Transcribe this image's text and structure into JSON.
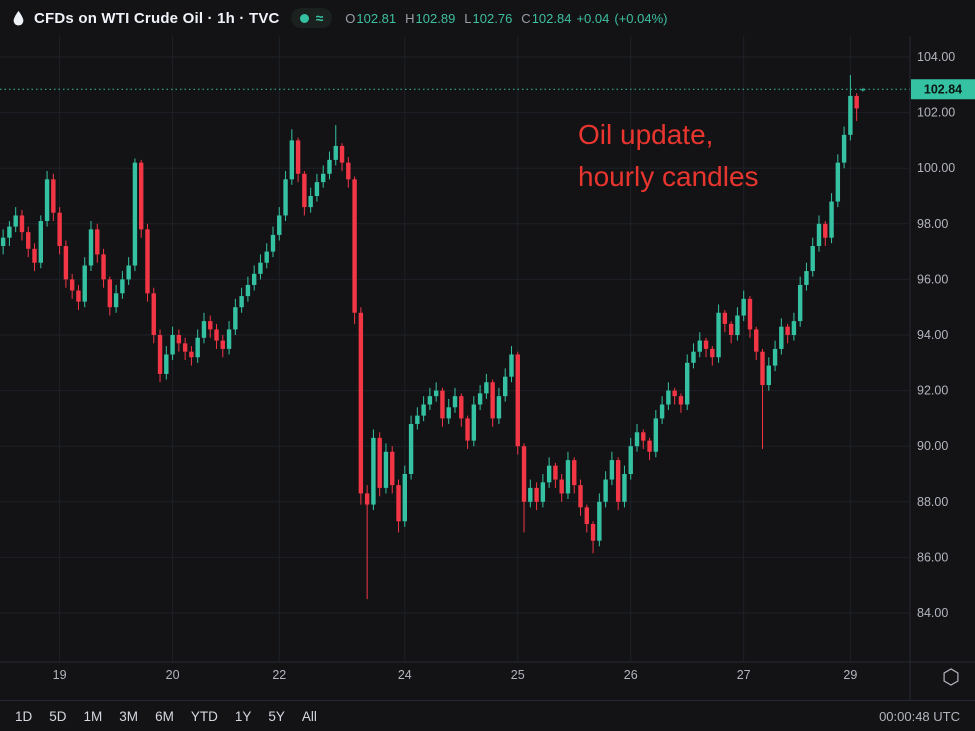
{
  "header": {
    "symbol_title": "CFDs on WTI Crude Oil · 1h · TVC",
    "approx_glyph": "≈",
    "ohlc": {
      "o_label": "O",
      "o": "102.81",
      "h_label": "H",
      "h": "102.89",
      "l_label": "L",
      "l": "102.76",
      "c_label": "C",
      "c": "102.84",
      "change": "+0.04",
      "change_pct": "(+0.04%)"
    }
  },
  "toolbar": {
    "ranges": [
      "1D",
      "5D",
      "1M",
      "3M",
      "6M",
      "YTD",
      "1Y",
      "5Y",
      "All"
    ],
    "clock": "00:00:48 UTC"
  },
  "colors": {
    "bg": "#131316",
    "header_text": "#f0f3fa",
    "muted": "#9a9ea8",
    "value_text": "#3dbfa1",
    "axis_text": "#b2b5be",
    "toolbar_text": "#d5d8e0",
    "grid": "#1d2127",
    "border": "#242832",
    "up": "#35c2a2",
    "down": "#f23645",
    "tag_text": "#0a1512",
    "pill_bg": "#1a211f"
  },
  "chart_data": {
    "type": "candlestick",
    "symbol": "CFDs on WTI Crude Oil",
    "interval": "1h",
    "source": "TVC",
    "current_bar": {
      "open": 102.81,
      "high": 102.89,
      "low": 102.76,
      "close": 102.84,
      "change": 0.04,
      "change_pct": 0.04
    },
    "last_price": 102.84,
    "last_price_label": "102.84",
    "grid": true,
    "legend_position": "top-left",
    "annotation": {
      "lines": [
        "Oil update,",
        "hourly candles"
      ],
      "color": "#e8352e"
    },
    "y_axis": {
      "min": 82.3,
      "max": 104.8,
      "tick_values": [
        104,
        102,
        100,
        98,
        96,
        94,
        92,
        90,
        88,
        86,
        84
      ],
      "tick_labels": [
        "104.00",
        "102.00",
        "100.00",
        "98.00",
        "96.00",
        "94.00",
        "92.00",
        "90.00",
        "88.00",
        "86.00",
        "84.00"
      ]
    },
    "x_slots": 145,
    "x_ticks": [
      {
        "label": "19",
        "index": 9
      },
      {
        "label": "20",
        "index": 27
      },
      {
        "label": "22",
        "index": 44
      },
      {
        "label": "24",
        "index": 64
      },
      {
        "label": "25",
        "index": 82
      },
      {
        "label": "26",
        "index": 100
      },
      {
        "label": "27",
        "index": 118
      },
      {
        "label": "29",
        "index": 135
      }
    ],
    "candles": [
      [
        97.2,
        97.8,
        96.9,
        97.5
      ],
      [
        97.5,
        98.1,
        97.2,
        97.9
      ],
      [
        97.9,
        98.6,
        97.7,
        98.3
      ],
      [
        98.3,
        98.5,
        97.4,
        97.7
      ],
      [
        97.7,
        97.9,
        96.8,
        97.1
      ],
      [
        97.1,
        97.3,
        96.3,
        96.6
      ],
      [
        96.6,
        98.3,
        96.4,
        98.1
      ],
      [
        98.1,
        99.9,
        97.9,
        99.6
      ],
      [
        99.6,
        99.8,
        98.1,
        98.4
      ],
      [
        98.4,
        98.6,
        96.9,
        97.2
      ],
      [
        97.2,
        97.4,
        95.7,
        96.0
      ],
      [
        96.0,
        96.2,
        95.3,
        95.6
      ],
      [
        95.6,
        95.8,
        94.9,
        95.2
      ],
      [
        95.2,
        96.8,
        95.0,
        96.5
      ],
      [
        96.5,
        98.1,
        96.3,
        97.8
      ],
      [
        97.8,
        98.0,
        96.6,
        96.9
      ],
      [
        96.9,
        97.1,
        95.7,
        96.0
      ],
      [
        96.0,
        96.1,
        94.7,
        95.0
      ],
      [
        95.0,
        95.8,
        94.8,
        95.5
      ],
      [
        95.5,
        96.3,
        95.3,
        96.0
      ],
      [
        96.0,
        96.8,
        95.8,
        96.5
      ],
      [
        96.5,
        100.35,
        96.3,
        100.2
      ],
      [
        100.2,
        100.3,
        97.5,
        97.8
      ],
      [
        97.8,
        98.0,
        95.2,
        95.5
      ],
      [
        95.5,
        95.7,
        93.7,
        94.0
      ],
      [
        94.0,
        94.2,
        92.3,
        92.6
      ],
      [
        92.6,
        93.6,
        92.4,
        93.3
      ],
      [
        93.3,
        94.3,
        93.1,
        94.0
      ],
      [
        94.0,
        94.2,
        93.4,
        93.7
      ],
      [
        93.7,
        93.9,
        93.1,
        93.4
      ],
      [
        93.4,
        93.6,
        92.9,
        93.2
      ],
      [
        93.2,
        94.2,
        93.0,
        93.9
      ],
      [
        93.9,
        94.8,
        93.7,
        94.5
      ],
      [
        94.5,
        94.7,
        93.9,
        94.2
      ],
      [
        94.2,
        94.4,
        93.5,
        93.8
      ],
      [
        93.8,
        94.0,
        93.2,
        93.5
      ],
      [
        93.5,
        94.5,
        93.3,
        94.2
      ],
      [
        94.2,
        95.3,
        94.0,
        95.0
      ],
      [
        95.0,
        95.7,
        94.8,
        95.4
      ],
      [
        95.4,
        96.1,
        95.2,
        95.8
      ],
      [
        95.8,
        96.5,
        95.6,
        96.2
      ],
      [
        96.2,
        96.9,
        96.0,
        96.6
      ],
      [
        96.6,
        97.3,
        96.4,
        97.0
      ],
      [
        97.0,
        97.9,
        96.8,
        97.6
      ],
      [
        97.6,
        98.6,
        97.4,
        98.3
      ],
      [
        98.3,
        99.9,
        98.1,
        99.6
      ],
      [
        99.6,
        101.4,
        99.4,
        101.0
      ],
      [
        101.0,
        101.1,
        99.5,
        99.8
      ],
      [
        99.8,
        99.9,
        98.3,
        98.6
      ],
      [
        98.6,
        99.3,
        98.4,
        99.0
      ],
      [
        99.0,
        99.8,
        98.8,
        99.5
      ],
      [
        99.5,
        100.1,
        99.3,
        99.8
      ],
      [
        99.8,
        100.6,
        99.6,
        100.3
      ],
      [
        100.3,
        101.55,
        100.1,
        100.8
      ],
      [
        100.8,
        100.9,
        99.9,
        100.2
      ],
      [
        100.2,
        100.4,
        99.3,
        99.6
      ],
      [
        99.6,
        99.7,
        94.4,
        94.8
      ],
      [
        94.8,
        95.0,
        87.9,
        88.3
      ],
      [
        88.3,
        88.6,
        84.5,
        87.9
      ],
      [
        87.9,
        90.6,
        87.7,
        90.3
      ],
      [
        90.3,
        90.5,
        88.2,
        88.5
      ],
      [
        88.5,
        90.1,
        88.3,
        89.8
      ],
      [
        89.8,
        90.0,
        88.3,
        88.6
      ],
      [
        88.6,
        88.8,
        86.9,
        87.3
      ],
      [
        87.3,
        89.3,
        87.1,
        89.0
      ],
      [
        89.0,
        91.1,
        88.8,
        90.8
      ],
      [
        90.8,
        91.4,
        90.6,
        91.1
      ],
      [
        91.1,
        91.8,
        90.9,
        91.5
      ],
      [
        91.5,
        92.1,
        91.3,
        91.8
      ],
      [
        91.8,
        92.3,
        91.6,
        92.0
      ],
      [
        92.0,
        92.1,
        90.7,
        91.0
      ],
      [
        91.0,
        91.7,
        90.8,
        91.4
      ],
      [
        91.4,
        92.1,
        91.2,
        91.8
      ],
      [
        91.8,
        91.9,
        90.7,
        91.0
      ],
      [
        91.0,
        91.1,
        89.9,
        90.2
      ],
      [
        90.2,
        91.8,
        90.0,
        91.5
      ],
      [
        91.5,
        92.2,
        91.3,
        91.9
      ],
      [
        91.9,
        92.6,
        91.7,
        92.3
      ],
      [
        92.3,
        92.4,
        90.7,
        91.0
      ],
      [
        91.0,
        92.1,
        90.8,
        91.8
      ],
      [
        91.8,
        92.8,
        91.6,
        92.5
      ],
      [
        92.5,
        93.6,
        92.3,
        93.3
      ],
      [
        93.3,
        93.4,
        89.7,
        90.0
      ],
      [
        90.0,
        90.1,
        86.9,
        88.0
      ],
      [
        88.0,
        88.8,
        87.8,
        88.5
      ],
      [
        88.5,
        88.7,
        87.7,
        88.0
      ],
      [
        88.0,
        89.0,
        87.8,
        88.7
      ],
      [
        88.7,
        89.6,
        88.5,
        89.3
      ],
      [
        89.3,
        89.4,
        88.5,
        88.8
      ],
      [
        88.8,
        89.0,
        88.0,
        88.3
      ],
      [
        88.3,
        89.8,
        88.1,
        89.5
      ],
      [
        89.5,
        89.6,
        88.3,
        88.6
      ],
      [
        88.6,
        88.8,
        87.5,
        87.8
      ],
      [
        87.8,
        87.9,
        86.9,
        87.2
      ],
      [
        87.2,
        87.3,
        86.15,
        86.6
      ],
      [
        86.6,
        88.3,
        86.4,
        88.0
      ],
      [
        88.0,
        89.1,
        87.8,
        88.8
      ],
      [
        88.8,
        89.8,
        88.6,
        89.5
      ],
      [
        89.5,
        89.6,
        87.7,
        88.0
      ],
      [
        88.0,
        89.3,
        87.8,
        89.0
      ],
      [
        89.0,
        90.3,
        88.8,
        90.0
      ],
      [
        90.0,
        90.8,
        89.8,
        90.5
      ],
      [
        90.5,
        90.6,
        89.9,
        90.2
      ],
      [
        90.2,
        90.3,
        89.5,
        89.8
      ],
      [
        89.8,
        91.3,
        89.6,
        91.0
      ],
      [
        91.0,
        91.8,
        90.8,
        91.5
      ],
      [
        91.5,
        92.3,
        91.3,
        92.0
      ],
      [
        92.0,
        92.1,
        91.5,
        91.8
      ],
      [
        91.8,
        91.9,
        91.2,
        91.5
      ],
      [
        91.5,
        93.3,
        91.3,
        93.0
      ],
      [
        93.0,
        93.7,
        92.8,
        93.4
      ],
      [
        93.4,
        94.1,
        93.2,
        93.8
      ],
      [
        93.8,
        93.9,
        93.2,
        93.5
      ],
      [
        93.5,
        93.6,
        92.9,
        93.2
      ],
      [
        93.2,
        95.1,
        93.0,
        94.8
      ],
      [
        94.8,
        94.9,
        94.1,
        94.4
      ],
      [
        94.4,
        94.5,
        93.7,
        94.0
      ],
      [
        94.0,
        95.0,
        93.8,
        94.7
      ],
      [
        94.7,
        95.6,
        94.5,
        95.3
      ],
      [
        95.3,
        95.4,
        93.9,
        94.2
      ],
      [
        94.2,
        94.3,
        93.1,
        93.4
      ],
      [
        93.4,
        93.5,
        89.9,
        92.2
      ],
      [
        92.2,
        93.2,
        92.0,
        92.9
      ],
      [
        92.9,
        93.8,
        92.7,
        93.5
      ],
      [
        93.5,
        94.6,
        93.3,
        94.3
      ],
      [
        94.3,
        94.4,
        93.7,
        94.0
      ],
      [
        94.0,
        94.8,
        93.8,
        94.5
      ],
      [
        94.5,
        96.1,
        94.3,
        95.8
      ],
      [
        95.8,
        96.6,
        95.6,
        96.3
      ],
      [
        96.3,
        97.5,
        96.1,
        97.2
      ],
      [
        97.2,
        98.3,
        97.0,
        98.0
      ],
      [
        98.0,
        98.1,
        97.2,
        97.5
      ],
      [
        97.5,
        99.1,
        97.3,
        98.8
      ],
      [
        98.8,
        100.5,
        98.6,
        100.2
      ],
      [
        100.2,
        101.5,
        100.0,
        101.2
      ],
      [
        101.2,
        103.35,
        101.0,
        102.6
      ],
      [
        102.6,
        102.7,
        101.7,
        102.15
      ],
      [
        102.81,
        102.89,
        102.76,
        102.84
      ]
    ]
  }
}
